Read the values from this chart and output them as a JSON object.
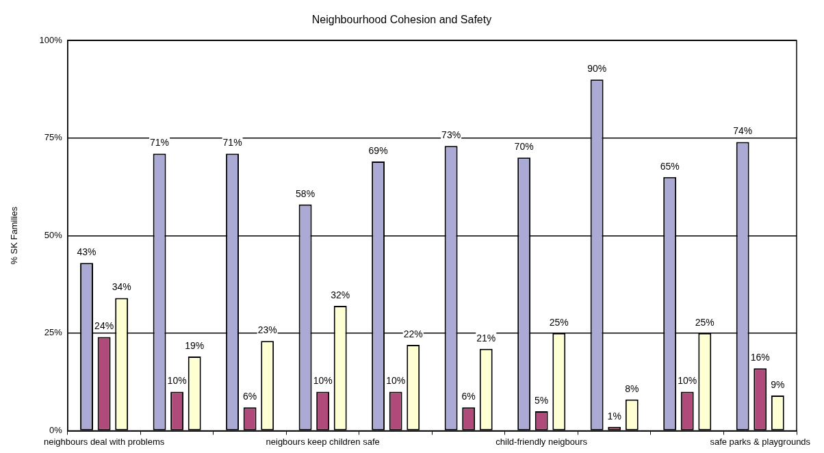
{
  "chart_data": {
    "type": "bar",
    "title": "Neighbourhood Cohesion and Safety",
    "ylabel": "% SK Families",
    "categories": [
      "neighbours deal with problems",
      null,
      null,
      "neigbours keep children safe",
      null,
      null,
      "child-friendly neigbours",
      null,
      null,
      "safe parks & playgrounds"
    ],
    "series": [
      {
        "color": "#aaaad4",
        "values": [
          43,
          71,
          71,
          58,
          69,
          73,
          70,
          90,
          65,
          74
        ],
        "value_labels": [
          "43%",
          "71%",
          "71%",
          "58%",
          "69%",
          "73%",
          "70%",
          "90%",
          "65%",
          "74%"
        ]
      },
      {
        "color": "#b04a7a",
        "values": [
          24,
          10,
          6,
          10,
          10,
          6,
          5,
          1,
          10,
          16
        ],
        "value_labels": [
          "24%",
          "10%",
          "6%",
          "10%",
          "10%",
          "6%",
          "5%",
          "1%",
          "10%",
          "16%"
        ]
      },
      {
        "color": "#ffffd4",
        "values": [
          34,
          19,
          23,
          32,
          22,
          21,
          25,
          8,
          25,
          9
        ],
        "value_labels": [
          "34%",
          "19%",
          "23%",
          "32%",
          "22%",
          "21%",
          "25%",
          "8%",
          "25%",
          "9%"
        ]
      }
    ],
    "ylim": [
      0,
      100
    ],
    "yticks": [
      {
        "value": 0,
        "label": "0%"
      },
      {
        "value": 25,
        "label": "25%"
      },
      {
        "value": 50,
        "label": "50%"
      },
      {
        "value": 75,
        "label": "75%"
      },
      {
        "value": 100,
        "label": "100%"
      }
    ],
    "grid": "y",
    "legend": false
  }
}
